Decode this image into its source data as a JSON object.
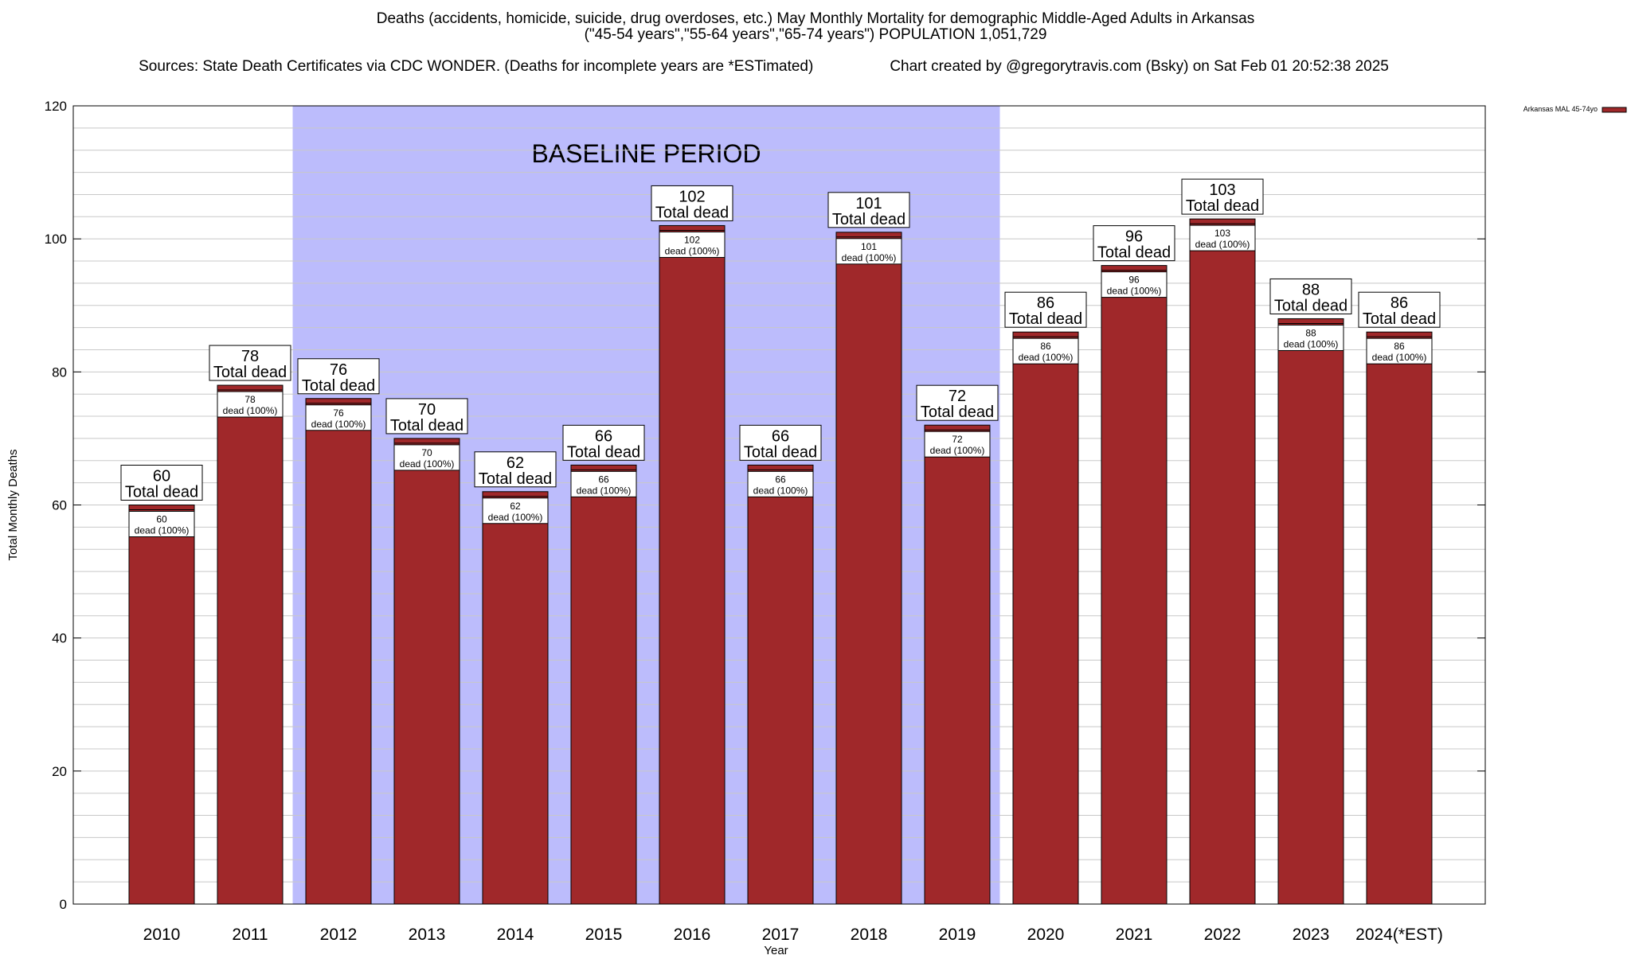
{
  "title": {
    "line1": "Deaths (accidents, homicide, suicide, drug overdoses, etc.) May Monthly Mortality for demographic Middle-Aged Adults in Arkansas",
    "line2": "(\"45-54 years\",\"55-64 years\",\"65-74 years\") POPULATION 1,051,729",
    "line3_left": "Sources: State Death Certificates via CDC WONDER. (Deaths for incomplete years are *ESTimated)",
    "line3_right": "Chart created by @gregorytravis.com (Bsky) on Sat Feb 01 20:52:38 2025"
  },
  "chart_data": {
    "type": "bar",
    "categories": [
      "2010",
      "2011",
      "2012",
      "2013",
      "2014",
      "2015",
      "2016",
      "2017",
      "2018",
      "2019",
      "2020",
      "2021",
      "2022",
      "2023",
      "2024(*EST)"
    ],
    "series": [
      {
        "name": "Arkansas MAL 45-74yo",
        "values": [
          60,
          78,
          76,
          70,
          62,
          66,
          102,
          66,
          101,
          72,
          86,
          96,
          103,
          88,
          86
        ]
      }
    ],
    "xlabel": "Year",
    "ylabel": "Total Monthly Deaths",
    "ylim": [
      0,
      120
    ],
    "yticks": [
      0,
      20,
      40,
      60,
      80,
      100,
      120
    ],
    "grid": true,
    "legend_position": "top-right",
    "baseline": {
      "label": "BASELINE PERIOD",
      "from": "2012",
      "to": "2019"
    },
    "total_label_suffix": "Total dead",
    "inner_label_suffix": "dead (100%)",
    "colors": {
      "bar": "#a0282a",
      "bar_cap": "#a0282a",
      "baseline": "#bcbcfc",
      "grid": "#c8c8c8"
    }
  }
}
